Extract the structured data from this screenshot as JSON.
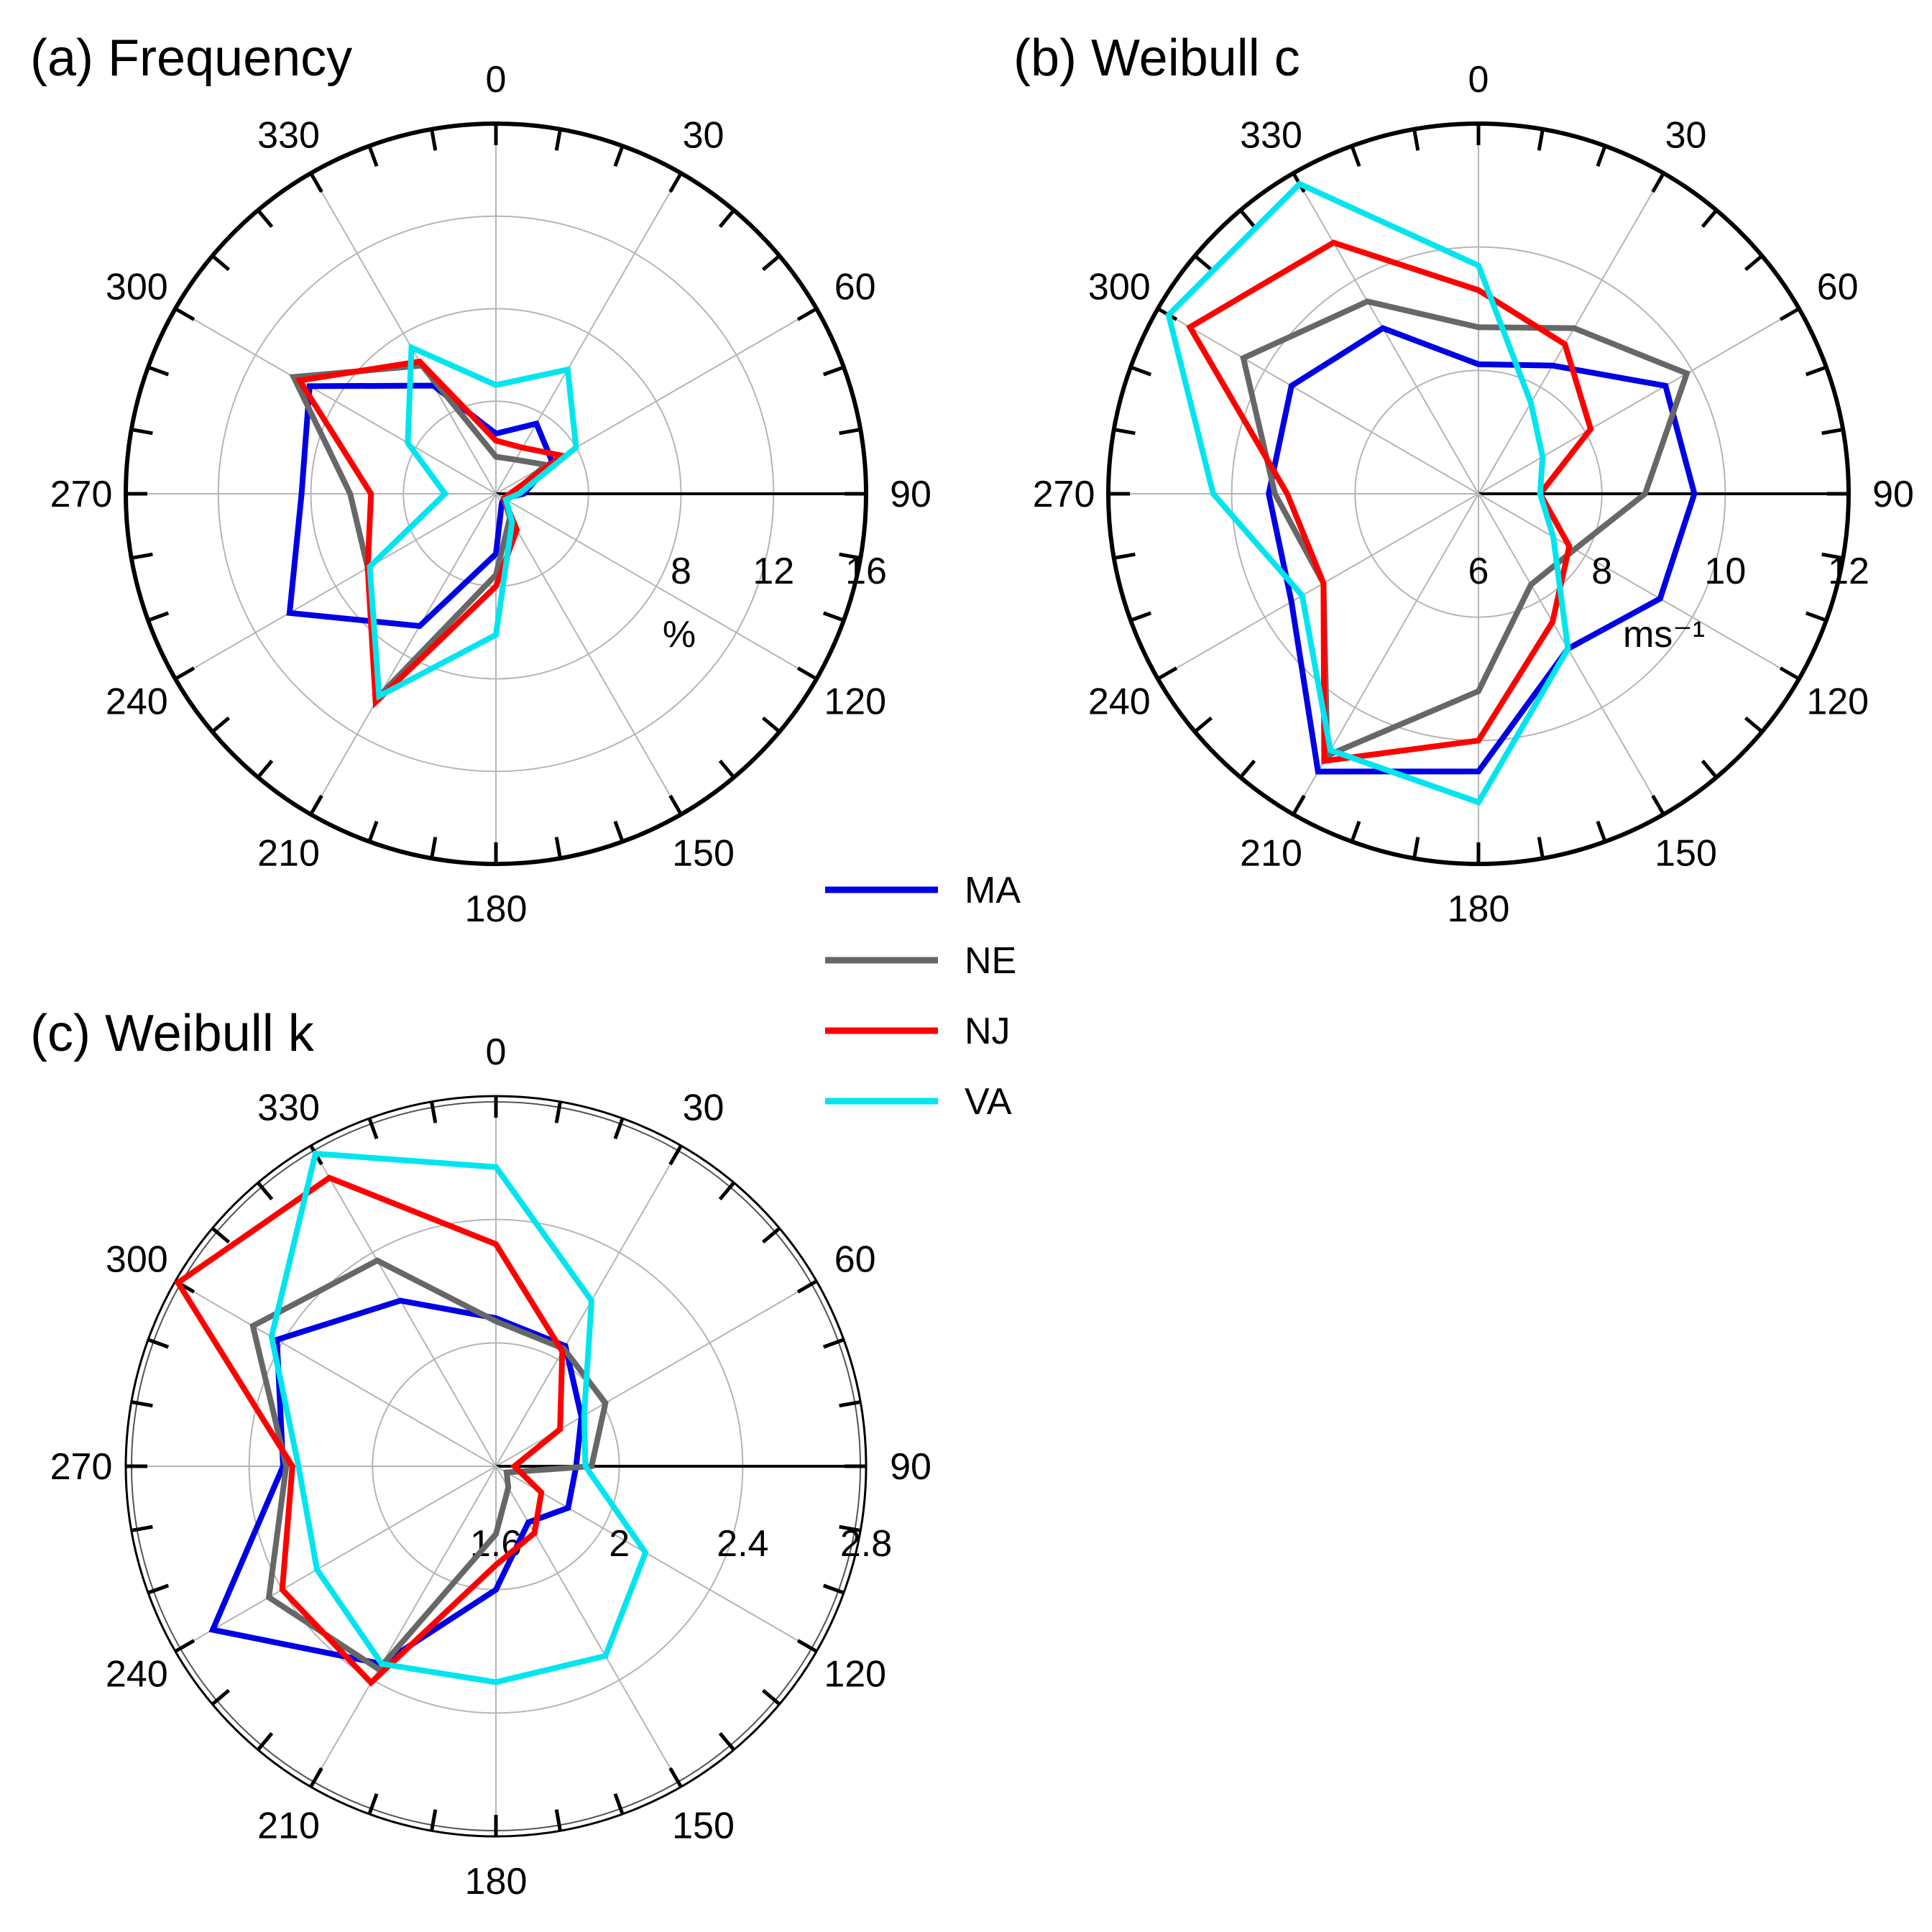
{
  "chart_data": [
    {
      "type": "polar-line",
      "title": "(a) Frequency",
      "direction_labels": [
        "0",
        "30",
        "60",
        "90",
        "120",
        "150",
        "180",
        "210",
        "240",
        "270",
        "300",
        "330"
      ],
      "radial_ticks": [
        "8",
        "12",
        "16"
      ],
      "radial_unit": "%",
      "rlim": [
        0,
        16
      ],
      "directions": [
        0,
        30,
        60,
        90,
        120,
        150,
        180,
        210,
        240,
        270,
        300,
        330
      ],
      "series": [
        {
          "name": "MA",
          "values": [
            2.6,
            3.5,
            2.8,
            1.2,
            0.4,
            0.5,
            2.6,
            6.6,
            10.3,
            8.4,
            9.3,
            5.4
          ]
        },
        {
          "name": "NE",
          "values": [
            1.6,
            1.7,
            2.5,
            0.7,
            0.4,
            1.2,
            3.5,
            10.1,
            6.4,
            6.3,
            10.1,
            6.4
          ]
        },
        {
          "name": "NJ",
          "values": [
            2.3,
            2.3,
            3.3,
            0.6,
            0.4,
            1.8,
            4.0,
            10.4,
            6.4,
            5.4,
            9.8,
            6.6
          ]
        },
        {
          "name": "VA",
          "values": [
            4.7,
            6.2,
            4.0,
            1.0,
            0.5,
            1.4,
            6.1,
            10.1,
            6.3,
            2.2,
            4.4,
            7.3
          ]
        }
      ]
    },
    {
      "type": "polar-line",
      "title": "(b) Weibull c",
      "direction_labels": [
        "0",
        "30",
        "60",
        "90",
        "120",
        "150",
        "180",
        "210",
        "240",
        "270",
        "300",
        "330"
      ],
      "radial_ticks": [
        "6",
        "8",
        "10",
        "12"
      ],
      "radial_unit": "ms⁻¹",
      "rlim": [
        6,
        12
      ],
      "directions": [
        0,
        30,
        60,
        90,
        120,
        150,
        180,
        210,
        240,
        270,
        300,
        330
      ],
      "series": [
        {
          "name": "MA",
          "values": [
            8.1,
            8.4,
            9.5,
            9.5,
            9.4,
            8.9,
            10.5,
            11.2,
            9.5,
            9.4,
            9.5,
            9.1
          ]
        },
        {
          "name": "NE",
          "values": [
            8.7,
            9.1,
            9.9,
            8.7,
            7.8,
            7.7,
            9.2,
            10.9,
            8.9,
            9.3,
            10.4,
            9.6
          ]
        },
        {
          "name": "NJ",
          "values": [
            9.3,
            8.8,
            8.1,
            7.0,
            7.7,
            8.4,
            10.0,
            11.0,
            8.9,
            9.1,
            11.4,
            10.7
          ]
        },
        {
          "name": "VA",
          "values": [
            9.7,
            7.7,
            7.2,
            7.0,
            7.4,
            8.9,
            11.0,
            10.8,
            9.3,
            10.3,
            11.8,
            11.8
          ]
        }
      ]
    },
    {
      "type": "polar-line",
      "title": "(c) Weibull k",
      "direction_labels": [
        "0",
        "30",
        "60",
        "90",
        "120",
        "150",
        "180",
        "210",
        "240",
        "270",
        "300",
        "330"
      ],
      "radial_ticks": [
        "1.6",
        "2",
        "2.4",
        "2.8"
      ],
      "radial_unit": "",
      "rlim": [
        1.6,
        2.8
      ],
      "directions": [
        0,
        30,
        60,
        90,
        120,
        150,
        180,
        210,
        240,
        270,
        300,
        330
      ],
      "series": [
        {
          "name": "MA",
          "values": [
            2.08,
            2.05,
            1.92,
            1.86,
            1.87,
            1.81,
            2.0,
            2.34,
            2.66,
            2.29,
            2.42,
            2.22
          ]
        },
        {
          "name": "NE",
          "values": [
            2.07,
            2.04,
            2.01,
            1.91,
            1.64,
            1.68,
            1.82,
            2.36,
            2.45,
            2.28,
            2.51,
            2.37
          ]
        },
        {
          "name": "NJ",
          "values": [
            2.32,
            2.03,
            1.84,
            1.66,
            1.77,
            1.85,
            1.92,
            2.41,
            2.4,
            2.26,
            2.79,
            2.68
          ]
        },
        {
          "name": "VA",
          "values": [
            2.57,
            2.22,
            1.93,
            1.89,
            2.16,
            2.31,
            2.3,
            2.34,
            2.27,
            2.24,
            2.44,
            2.77
          ]
        }
      ]
    }
  ],
  "legend": {
    "items": [
      {
        "name": "MA",
        "color": "#0000e6"
      },
      {
        "name": "NE",
        "color": "#676767"
      },
      {
        "name": "NJ",
        "color": "#ff0000"
      },
      {
        "name": "VA",
        "color": "#00e5ee"
      }
    ]
  }
}
